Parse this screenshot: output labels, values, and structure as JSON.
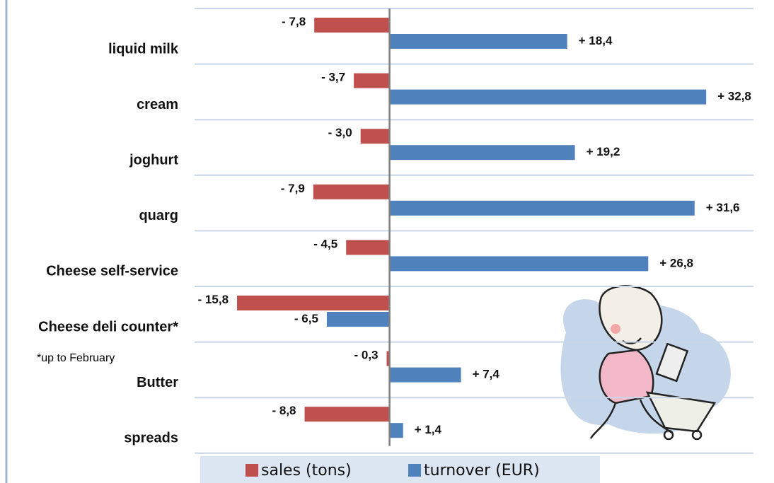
{
  "chart_data": {
    "type": "diverging-bar",
    "categories": [
      "liquid milk",
      "cream",
      "joghurt",
      "quarg",
      "Cheese self-service",
      "Cheese deli counter*",
      "Butter",
      "spreads"
    ],
    "series": [
      {
        "name": "sales (tons)",
        "color": "#c0504d",
        "values": [
          -7.8,
          -3.7,
          -3.0,
          -7.9,
          -4.5,
          -15.8,
          -0.3,
          -8.8
        ],
        "value_labels": [
          "- 7,8",
          "- 3,7",
          "- 3,0",
          "- 7,9",
          "- 4,5",
          "- 15,8",
          "- 0,3",
          "- 8,8"
        ]
      },
      {
        "name": "turnover (EUR)",
        "color": "#4f81bd",
        "values": [
          18.4,
          32.8,
          19.2,
          31.6,
          26.8,
          -6.5,
          7.4,
          1.4
        ],
        "value_labels": [
          "+ 18,4",
          "+ 32,8",
          "+ 19,2",
          "+ 31,6",
          "+ 26,8",
          "- 6,5",
          "+ 7,4",
          "+ 1,4"
        ]
      }
    ],
    "annotation": "*up to February",
    "xlim": [
      -20.2,
      37.7
    ]
  }
}
